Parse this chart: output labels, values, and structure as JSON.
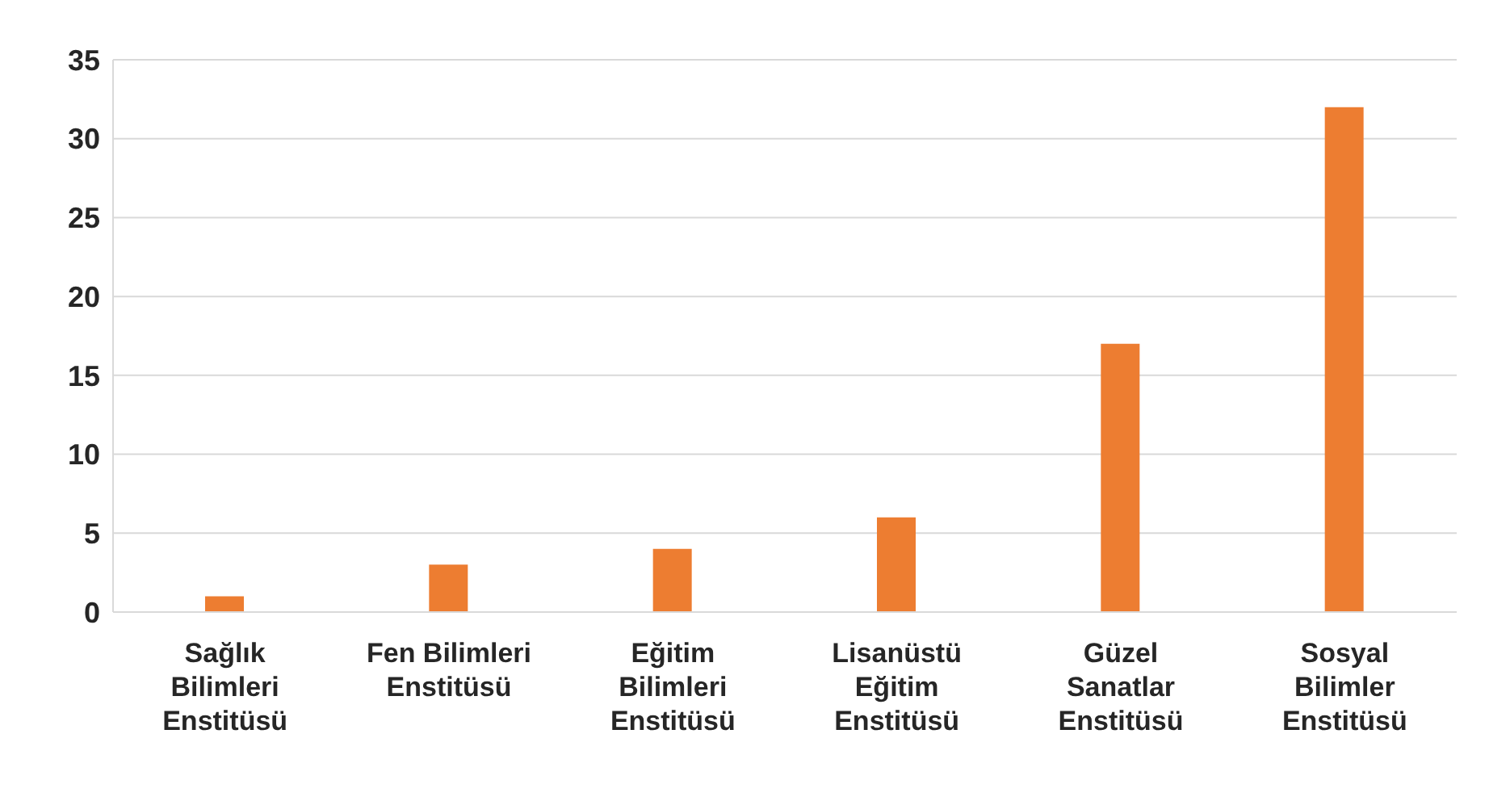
{
  "chart_data": {
    "type": "bar",
    "categories": [
      "Sağlık Bilimleri Enstitüsü",
      "Fen Bilimleri Enstitüsü",
      "Eğitim Bilimleri Enstitüsü",
      "Lisanüstü Eğitim Enstitüsü",
      "Güzel Sanatlar Enstitüsü",
      "Sosyal Bilimler Enstitüsü"
    ],
    "values": [
      1,
      3,
      4,
      6,
      17,
      32
    ],
    "color": "#ed7d31",
    "ylim": [
      0,
      35
    ],
    "yticks": [
      0,
      5,
      10,
      15,
      20,
      25,
      30,
      35
    ],
    "grid": "y",
    "legend": false
  }
}
